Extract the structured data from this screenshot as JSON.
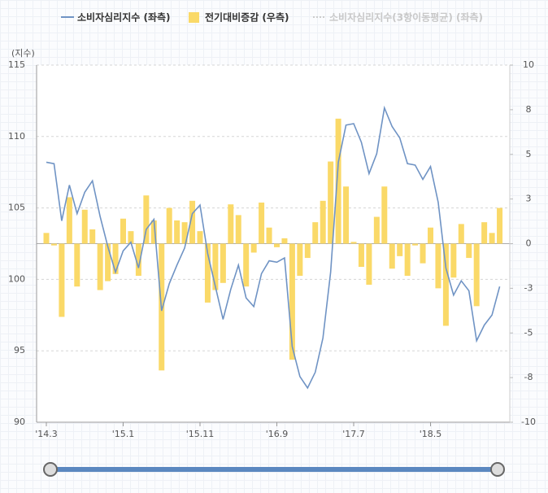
{
  "chart_data": {
    "type": "bar-line",
    "y_label": "(지수)",
    "categories": [
      "'14.3",
      null,
      null,
      null,
      null,
      null,
      null,
      null,
      null,
      null,
      "'15.1",
      null,
      null,
      null,
      null,
      null,
      null,
      null,
      null,
      null,
      "'15.11",
      null,
      null,
      null,
      null,
      null,
      null,
      null,
      null,
      null,
      "'16.9",
      null,
      null,
      null,
      null,
      null,
      null,
      null,
      null,
      null,
      "'17.7",
      null,
      null,
      null,
      null,
      null,
      null,
      null,
      null,
      null,
      "'18.5",
      null,
      null,
      null,
      null,
      null,
      null,
      null,
      null,
      null
    ],
    "series": [
      {
        "name": "소비자심리지수 (좌측)",
        "type": "line",
        "color": "#6f93c4",
        "values": [
          108.2,
          108.1,
          104.1,
          106.6,
          104.6,
          106.1,
          106.9,
          104.4,
          102.3,
          100.5,
          102.0,
          102.6,
          100.8,
          103.5,
          104.2,
          97.8,
          99.7,
          101.0,
          102.2,
          104.6,
          105.2,
          101.8,
          99.5,
          97.2,
          99.3,
          101.0,
          98.7,
          98.1,
          100.4,
          101.3,
          101.2,
          101.5,
          95.3,
          93.2,
          92.4,
          93.5,
          95.9,
          100.5,
          108.2,
          110.8,
          110.9,
          109.6,
          107.4,
          108.8,
          112.0,
          110.7,
          109.9,
          108.1,
          108.0,
          107.0,
          107.9,
          105.4,
          100.8,
          98.9,
          99.9,
          99.2,
          95.7,
          96.8,
          97.5,
          99.5
        ]
      },
      {
        "name": "전기대비증감 (우측)",
        "type": "bar",
        "axis": "y2",
        "color": "#fad968",
        "values": [
          0.6,
          -0.1,
          -4.1,
          2.6,
          -2.4,
          1.9,
          0.8,
          -2.6,
          -2.1,
          -1.7,
          1.4,
          0.7,
          -1.8,
          2.7,
          1.3,
          -7.1,
          2.0,
          1.3,
          1.2,
          2.4,
          0.7,
          -3.3,
          -2.6,
          -2.2,
          2.2,
          1.6,
          -2.4,
          -0.5,
          2.3,
          0.9,
          -0.2,
          0.3,
          -6.5,
          -1.8,
          -0.8,
          1.2,
          2.4,
          4.6,
          7.0,
          3.2,
          0.1,
          -1.3,
          -2.3,
          1.5,
          3.2,
          -1.4,
          -0.7,
          -1.8,
          -0.1,
          -1.1,
          0.9,
          -2.5,
          -4.6,
          -1.9,
          1.1,
          -0.8,
          -3.5,
          1.2,
          0.6,
          2.0
        ]
      },
      {
        "name": "소비자심리지수(3항이동평균) (좌측)",
        "type": "line",
        "color": "#cccccc",
        "visible": false
      }
    ],
    "ylim": [
      90,
      115
    ],
    "yticks": [
      90,
      95,
      100,
      105,
      110,
      115
    ],
    "y2lim": [
      -10,
      10
    ],
    "y2ticks": [
      {
        "value": -10,
        "label": "-10"
      },
      {
        "value": -7.5,
        "label": "-8"
      },
      {
        "value": -5,
        "label": "-5"
      },
      {
        "value": -2.5,
        "label": "-3"
      },
      {
        "value": 0,
        "label": "0"
      },
      {
        "value": 2.5,
        "label": "3"
      },
      {
        "value": 5,
        "label": "5"
      },
      {
        "value": 7.5,
        "label": "8"
      },
      {
        "value": 10,
        "label": "10"
      }
    ],
    "grid": true
  }
}
